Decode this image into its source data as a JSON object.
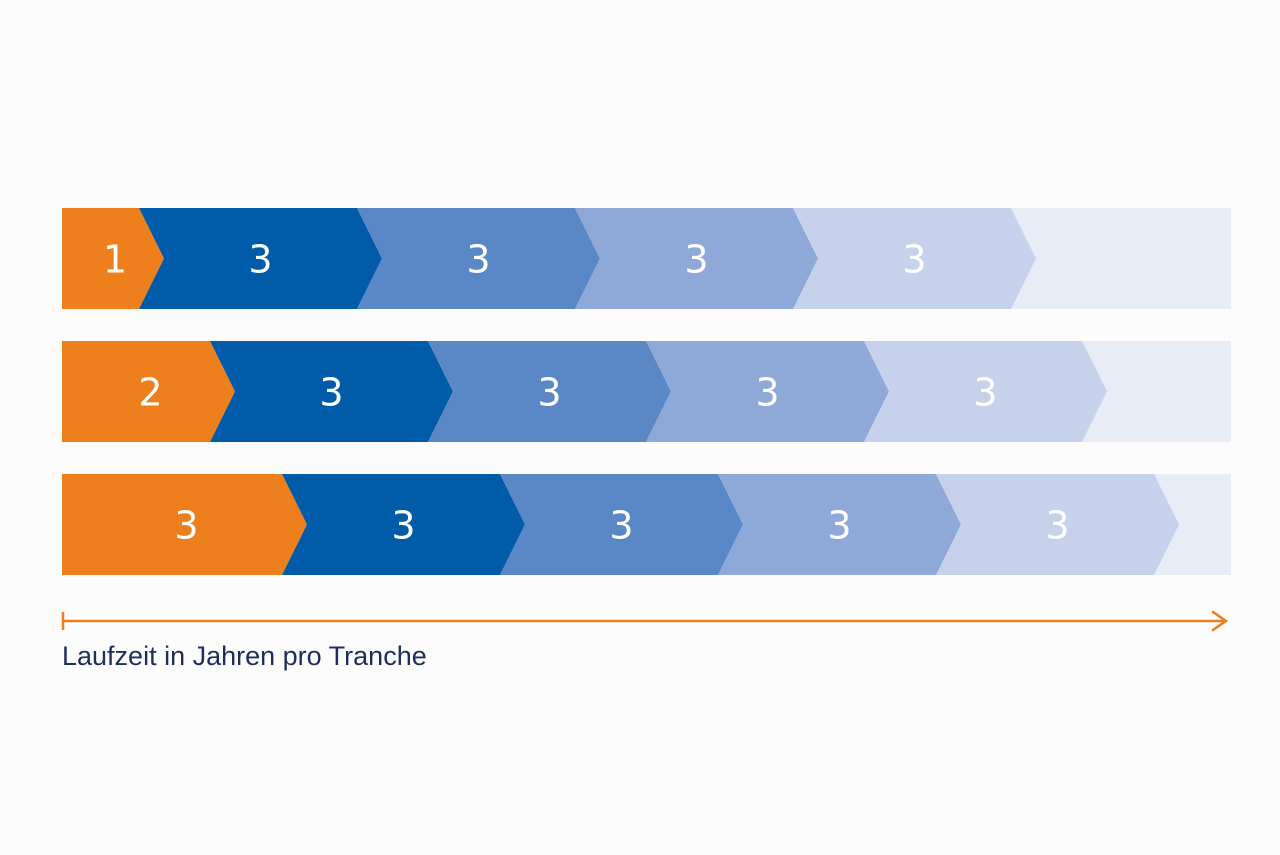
{
  "colors": {
    "background": "#fcfcfc",
    "track": "#e8ecf6",
    "orange": "#ee7f1d",
    "blue_1": "#005ca9",
    "blue_2": "#5a88c6",
    "blue_3": "#8ea8d8",
    "blue_4": "#c6d2ec",
    "caption_text": "#1f2d5c"
  },
  "rows": [
    {
      "segments": [
        {
          "label": "1",
          "color": "orange"
        },
        {
          "label": "3",
          "color": "blue_1"
        },
        {
          "label": "3",
          "color": "blue_2"
        },
        {
          "label": "3",
          "color": "blue_3"
        },
        {
          "label": "3",
          "color": "blue_4"
        }
      ]
    },
    {
      "segments": [
        {
          "label": "2",
          "color": "orange"
        },
        {
          "label": "3",
          "color": "blue_1"
        },
        {
          "label": "3",
          "color": "blue_2"
        },
        {
          "label": "3",
          "color": "blue_3"
        },
        {
          "label": "3",
          "color": "blue_4"
        }
      ]
    },
    {
      "segments": [
        {
          "label": "3",
          "color": "orange"
        },
        {
          "label": "3",
          "color": "blue_1"
        },
        {
          "label": "3",
          "color": "blue_2"
        },
        {
          "label": "3",
          "color": "blue_3"
        },
        {
          "label": "3",
          "color": "blue_4"
        }
      ]
    }
  ],
  "axis": {
    "caption": "Laufzeit in Jahren pro Tranche",
    "icon": "arrow-right-icon",
    "color": "#ee7f1d"
  }
}
